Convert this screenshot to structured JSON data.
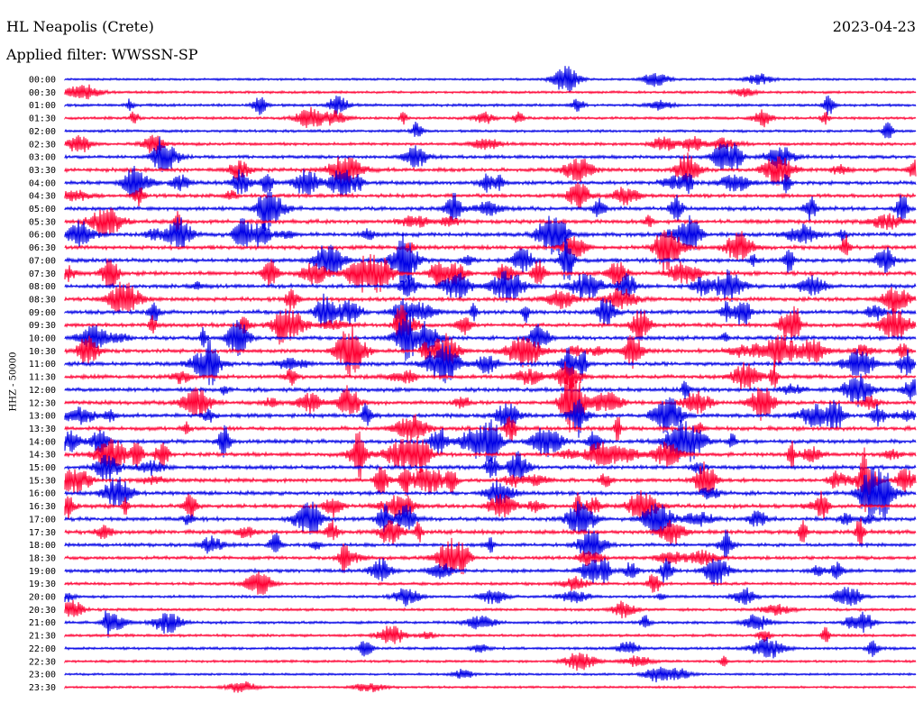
{
  "header": {
    "station": "HL Neapolis (Crete)",
    "date": "2023-04-23",
    "filter": "Applied filter: WWSSN-SP",
    "ylabel": "HHZ - 50000"
  },
  "chart_data": {
    "type": "seismogram",
    "title": "HL Neapolis (Crete)",
    "date": "2023-04-23",
    "filter": "WWSSN-SP",
    "channel_label": "HHZ - 50000",
    "colors": [
      "#0000e6",
      "#ff0033"
    ],
    "trace_times": [
      "00:00",
      "00:30",
      "01:00",
      "01:30",
      "02:00",
      "02:30",
      "03:00",
      "03:30",
      "04:00",
      "04:30",
      "05:00",
      "05:30",
      "06:00",
      "06:30",
      "07:00",
      "07:30",
      "08:00",
      "08:30",
      "09:00",
      "09:30",
      "10:00",
      "10:30",
      "11:00",
      "11:30",
      "12:00",
      "12:30",
      "13:00",
      "13:30",
      "14:00",
      "14:30",
      "15:00",
      "15:30",
      "16:00",
      "16:30",
      "17:00",
      "17:30",
      "18:00",
      "18:30",
      "19:00",
      "19:30",
      "20:00",
      "20:30",
      "21:00",
      "21:30",
      "22:00",
      "22:30",
      "23:00",
      "23:30"
    ],
    "trace_activity": [
      0.3,
      0.4,
      0.5,
      0.5,
      0.5,
      0.6,
      0.8,
      1.0,
      0.9,
      0.9,
      1.0,
      1.0,
      1.0,
      1.0,
      1.0,
      1.0,
      1.0,
      1.0,
      1.0,
      1.0,
      1.0,
      1.0,
      1.0,
      1.0,
      1.0,
      1.0,
      1.0,
      1.0,
      1.0,
      1.0,
      1.0,
      1.0,
      1.0,
      1.0,
      1.0,
      1.0,
      0.8,
      0.8,
      0.8,
      0.6,
      0.5,
      0.5,
      0.5,
      0.5,
      0.5,
      0.4,
      0.3,
      0.3
    ]
  }
}
